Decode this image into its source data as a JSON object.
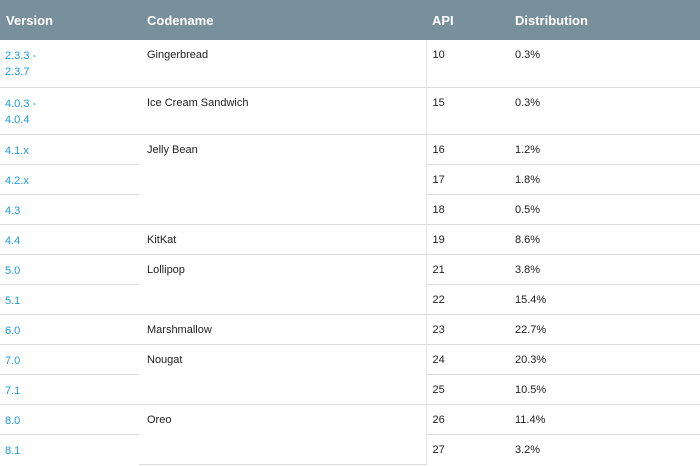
{
  "table": {
    "headers": {
      "version": "Version",
      "codename": "Codename",
      "api": "API",
      "distribution": "Distribution"
    },
    "rows": [
      {
        "version": "2.3.3 -\n2.3.7",
        "codename": "Gingerbread",
        "api": "10",
        "distribution": "0.3%"
      },
      {
        "version": "4.0.3 -\n4.0.4",
        "codename": "Ice Cream Sandwich",
        "api": "15",
        "distribution": "0.3%"
      },
      {
        "version": "4.1.x",
        "codename": "Jelly Bean",
        "api": "16",
        "distribution": "1.2%"
      },
      {
        "version": "4.2.x",
        "codename": "",
        "api": "17",
        "distribution": "1.8%"
      },
      {
        "version": "4.3",
        "codename": "",
        "api": "18",
        "distribution": "0.5%"
      },
      {
        "version": "4.4",
        "codename": "KitKat",
        "api": "19",
        "distribution": "8.6%"
      },
      {
        "version": "5.0",
        "codename": "Lollipop",
        "api": "21",
        "distribution": "3.8%"
      },
      {
        "version": "5.1",
        "codename": "",
        "api": "22",
        "distribution": "15.4%"
      },
      {
        "version": "6.0",
        "codename": "Marshmallow",
        "api": "23",
        "distribution": "22.7%"
      },
      {
        "version": "7.0",
        "codename": "Nougat",
        "api": "24",
        "distribution": "20.3%"
      },
      {
        "version": "7.1",
        "codename": "",
        "api": "25",
        "distribution": "10.5%"
      },
      {
        "version": "8.0",
        "codename": "Oreo",
        "api": "26",
        "distribution": "11.4%"
      },
      {
        "version": "8.1",
        "codename": "",
        "api": "27",
        "distribution": "3.2%"
      }
    ]
  },
  "colors": {
    "header_bg": "#78909c",
    "header_text": "#ffffff",
    "link": "#1a9be0",
    "row_border": "#dcdcdc"
  }
}
